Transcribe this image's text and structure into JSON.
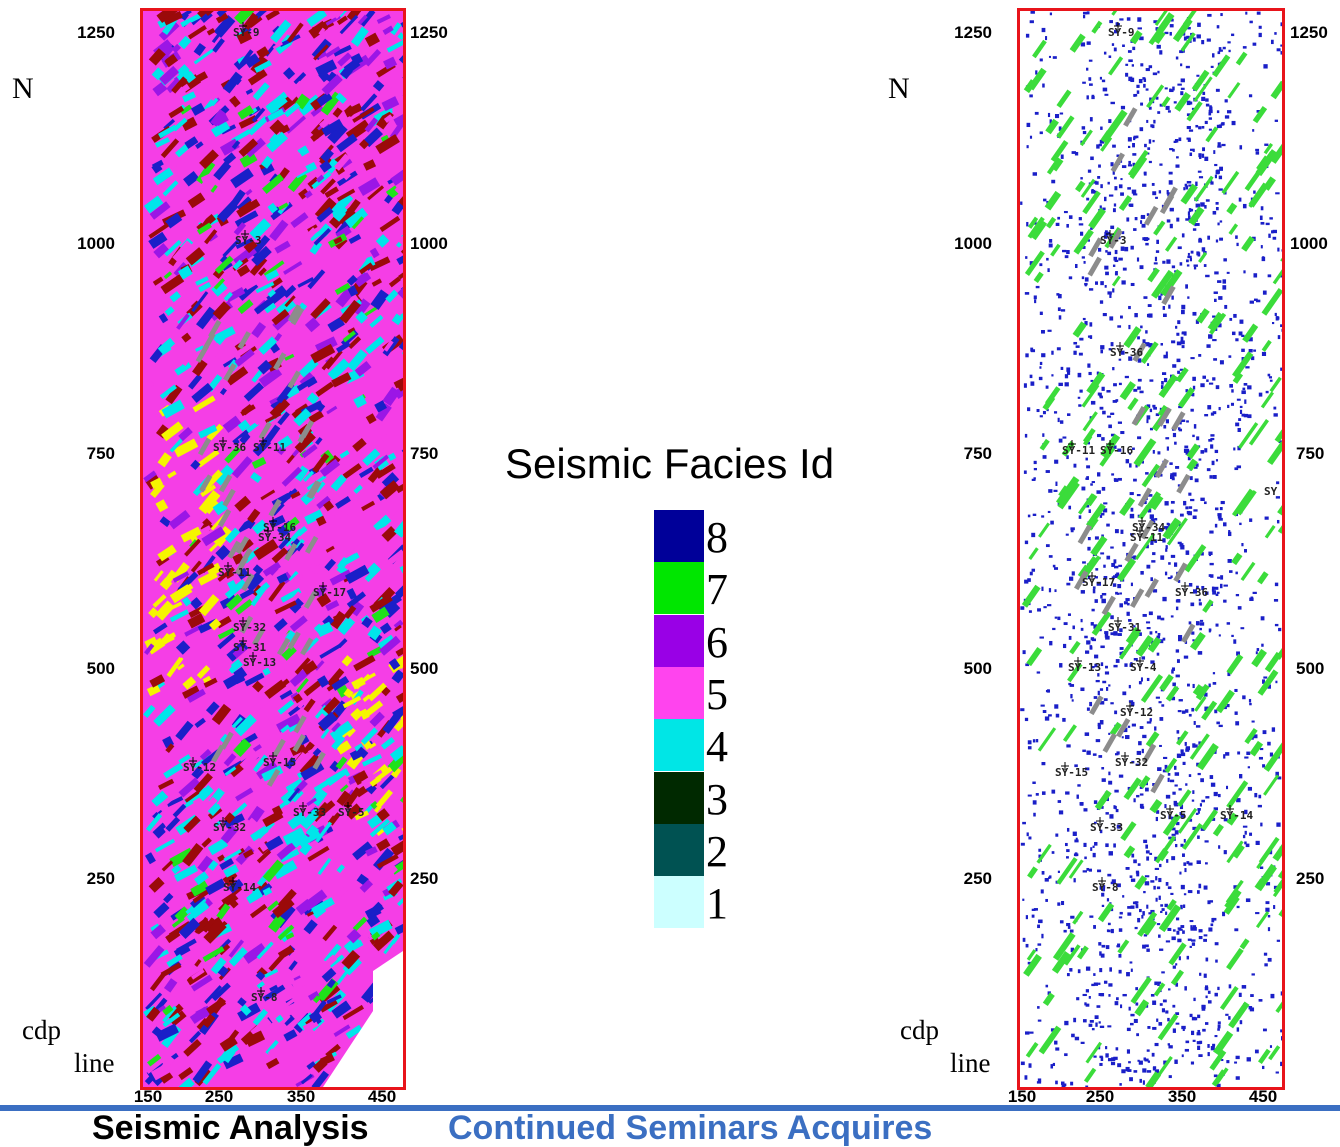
{
  "left_panel": {
    "north_label": "N",
    "y_ticks_left": [
      "1250",
      "1000",
      "750",
      "500",
      "250"
    ],
    "y_ticks_right": [
      "1250",
      "1000",
      "750",
      "500",
      "250"
    ],
    "x_ticks": [
      "150",
      "250",
      "350",
      "450"
    ],
    "cdp_label": "cdp",
    "line_label": "line",
    "wells": [
      "SY-9",
      "SY-3",
      "SY-36",
      "SY-11",
      "SY-16",
      "SY-34",
      "SY-11",
      "SY-17",
      "SY-32",
      "SY-31",
      "SY-13",
      "SY-12",
      "SY-15",
      "SY-33",
      "SY-5",
      "SY-32",
      "SY-14",
      "SY-8"
    ],
    "palette": {
      "dark_red": "#9b0a0a",
      "magenta": "#f53ee6",
      "cyan": "#00e5ea",
      "blue": "#1a1fc8",
      "green": "#1fe21a",
      "yellow": "#f5f500",
      "gray": "#8c8c8c",
      "purple": "#9b16e6"
    }
  },
  "right_panel": {
    "north_label": "N",
    "y_ticks_left": [
      "1250",
      "1000",
      "750",
      "500",
      "250"
    ],
    "y_ticks_right": [
      "1250",
      "1000",
      "750",
      "500",
      "250"
    ],
    "x_ticks": [
      "150",
      "250",
      "350",
      "450"
    ],
    "cdp_label": "cdp",
    "line_label": "line",
    "wells": [
      "SY-9",
      "SY-3",
      "SY-36",
      "SY-11",
      "SY-16",
      "SY-34",
      "SY-11",
      "SY-17",
      "SY-36",
      "SY-31",
      "SY-13",
      "SY-4",
      "SY-12",
      "SY-15",
      "SY-32",
      "SY-33",
      "SY-5",
      "SY-14",
      "SY-8"
    ],
    "edge_label": "SY",
    "palette": {
      "blue": "#1a1fc8",
      "green": "#3bdc3b",
      "gray": "#8c8c8c"
    }
  },
  "legend": {
    "title": "Seismic Facies Id",
    "items": [
      {
        "id": "8",
        "color": "#000099"
      },
      {
        "id": "7",
        "color": "#00e600"
      },
      {
        "id": "6",
        "color": "#9900e6"
      },
      {
        "id": "5",
        "color": "#ff44ee"
      },
      {
        "id": "4",
        "color": "#00e6e6"
      },
      {
        "id": "3",
        "color": "#002900"
      },
      {
        "id": "2",
        "color": "#005252"
      },
      {
        "id": "1",
        "color": "#ccffff"
      }
    ]
  },
  "footer": {
    "left_text": "Seismic Analysis",
    "right_text": "Continued Seminars Acquires"
  }
}
